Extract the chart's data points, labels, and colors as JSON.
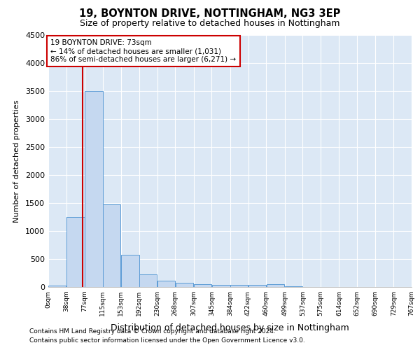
{
  "title": "19, BOYNTON DRIVE, NOTTINGHAM, NG3 3EP",
  "subtitle": "Size of property relative to detached houses in Nottingham",
  "xlabel": "Distribution of detached houses by size in Nottingham",
  "ylabel": "Number of detached properties",
  "footnote1": "Contains HM Land Registry data © Crown copyright and database right 2024.",
  "footnote2": "Contains public sector information licensed under the Open Government Licence v3.0.",
  "annotation_line1": "19 BOYNTON DRIVE: 73sqm",
  "annotation_line2": "← 14% of detached houses are smaller (1,031)",
  "annotation_line3": "86% of semi-detached houses are larger (6,271) →",
  "property_size": 73,
  "bar_left_edges": [
    0,
    38,
    77,
    115,
    153,
    192,
    230,
    268,
    307,
    345,
    384,
    422,
    460,
    499,
    537,
    575,
    614,
    652,
    690,
    729
  ],
  "bar_widths": [
    38,
    39,
    38,
    38,
    39,
    38,
    38,
    39,
    38,
    39,
    38,
    38,
    39,
    38,
    38,
    39,
    38,
    38,
    39,
    38
  ],
  "bar_heights": [
    30,
    1250,
    3500,
    1470,
    575,
    220,
    110,
    80,
    55,
    40,
    35,
    35,
    50,
    10,
    0,
    0,
    0,
    0,
    0,
    0
  ],
  "bar_color": "#c5d8f0",
  "bar_edge_color": "#5b9bd5",
  "red_line_color": "#cc0000",
  "annotation_box_edge": "#cc0000",
  "background_color": "#dce8f5",
  "grid_color": "#ffffff",
  "ylim": [
    0,
    4500
  ],
  "xlim": [
    0,
    767
  ],
  "yticks": [
    0,
    500,
    1000,
    1500,
    2000,
    2500,
    3000,
    3500,
    4000,
    4500
  ],
  "xtick_labels": [
    "0sqm",
    "38sqm",
    "77sqm",
    "115sqm",
    "153sqm",
    "192sqm",
    "230sqm",
    "268sqm",
    "307sqm",
    "345sqm",
    "384sqm",
    "422sqm",
    "460sqm",
    "499sqm",
    "537sqm",
    "575sqm",
    "614sqm",
    "652sqm",
    "690sqm",
    "729sqm",
    "767sqm"
  ]
}
